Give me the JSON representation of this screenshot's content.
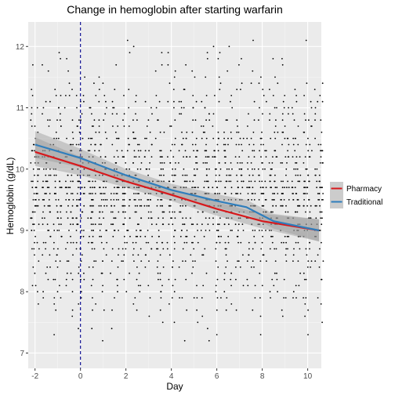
{
  "chart_data": {
    "type": "scatter",
    "title": "Change in hemoglobin after starting warfarin",
    "xlabel": "Day",
    "ylabel": "Hemoglobin (g/dL)",
    "xlim": [
      -2.3,
      10.6
    ],
    "ylim": [
      6.75,
      12.4
    ],
    "x_ticks": [
      -2,
      0,
      2,
      4,
      6,
      8,
      10
    ],
    "y_ticks": [
      7,
      8,
      9,
      10,
      11,
      12
    ],
    "grid": true,
    "background": "#ebebeb",
    "vline": {
      "x": 0,
      "style": "dashed",
      "color": "#00008b"
    },
    "legend_position": "right",
    "series": [
      {
        "name": "Pharmacy",
        "color": "#d7191c",
        "x": [
          -2,
          0,
          2,
          4,
          6,
          8,
          10.5
        ],
        "y": [
          10.28,
          10.05,
          9.8,
          9.58,
          9.35,
          9.15,
          9.0
        ],
        "band_low": [
          10.05,
          9.9,
          9.7,
          9.48,
          9.24,
          9.03,
          8.82
        ],
        "band_high": [
          10.52,
          10.2,
          9.9,
          9.68,
          9.46,
          9.27,
          9.18
        ]
      },
      {
        "name": "Traditional",
        "color": "#2f7ebc",
        "x": [
          -2,
          0,
          2,
          4,
          6,
          7.3,
          8.5,
          10.5
        ],
        "y": [
          10.4,
          10.18,
          9.9,
          9.66,
          9.48,
          9.38,
          9.15,
          9.0
        ],
        "band_low": [
          10.18,
          10.03,
          9.8,
          9.56,
          9.37,
          9.27,
          9.03,
          8.82
        ],
        "band_high": [
          10.62,
          10.33,
          10.0,
          9.76,
          9.59,
          9.5,
          9.27,
          9.18
        ]
      }
    ],
    "points_description_only": {
      "x_range": [
        -2,
        10.5
      ],
      "y_range": [
        6.8,
        12.2
      ],
      "y_step": 0.1
    }
  }
}
